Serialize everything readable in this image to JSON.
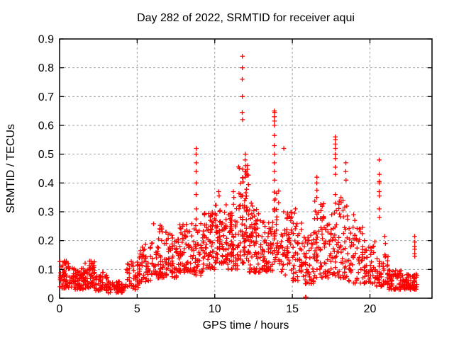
{
  "chart_data": {
    "type": "scatter",
    "title": "Day 282 of 2022, SRMTID for receiver aqui",
    "xlabel": "GPS time / hours",
    "ylabel": "SRMTID / TECUs",
    "xlim": [
      0,
      24
    ],
    "ylim": [
      0,
      0.9
    ],
    "x_ticks": [
      0,
      5,
      10,
      15,
      20
    ],
    "x_tick_labels": [
      "0",
      "5",
      "10",
      "15",
      "20"
    ],
    "y_ticks": [
      0,
      0.1,
      0.2,
      0.3,
      0.4,
      0.5,
      0.6,
      0.7,
      0.8,
      0.9
    ],
    "y_tick_labels": [
      "0",
      "0.1",
      "0.2",
      "0.3",
      "0.4",
      "0.5",
      "0.6",
      "0.7",
      "0.8",
      "0.9"
    ],
    "grid": true,
    "legend": "none",
    "marker": "plus",
    "marker_color": "#ff0000",
    "grid_color": "#a0a0a0",
    "border_color": "#000000",
    "seed": 7,
    "bands": [
      [
        0.0,
        0.6,
        0.035,
        0.13,
        55
      ],
      [
        0.6,
        1.6,
        0.03,
        0.105,
        85
      ],
      [
        1.6,
        2.3,
        0.035,
        0.13,
        60
      ],
      [
        2.3,
        3.1,
        0.025,
        0.09,
        55
      ],
      [
        3.1,
        4.3,
        0.018,
        0.06,
        55
      ],
      [
        4.3,
        5.1,
        0.03,
        0.13,
        45
      ],
      [
        5.1,
        5.9,
        0.05,
        0.19,
        55
      ],
      [
        5.9,
        6.8,
        0.07,
        0.26,
        65
      ],
      [
        6.8,
        7.6,
        0.07,
        0.23,
        60
      ],
      [
        7.6,
        8.6,
        0.09,
        0.26,
        75
      ],
      [
        8.6,
        9.3,
        0.08,
        0.28,
        55
      ],
      [
        9.3,
        10.0,
        0.1,
        0.3,
        60
      ],
      [
        10.0,
        10.8,
        0.12,
        0.34,
        75
      ],
      [
        10.8,
        11.5,
        0.1,
        0.33,
        70
      ],
      [
        11.5,
        12.2,
        0.12,
        0.48,
        80
      ],
      [
        12.2,
        13.0,
        0.09,
        0.31,
        70
      ],
      [
        13.0,
        13.8,
        0.09,
        0.27,
        60
      ],
      [
        13.8,
        14.2,
        0.12,
        0.38,
        35
      ],
      [
        14.2,
        15.0,
        0.08,
        0.3,
        55
      ],
      [
        15.0,
        15.8,
        0.06,
        0.27,
        50
      ],
      [
        15.8,
        16.4,
        0.05,
        0.24,
        45
      ],
      [
        16.4,
        17.1,
        0.07,
        0.34,
        55
      ],
      [
        17.1,
        17.8,
        0.07,
        0.3,
        50
      ],
      [
        17.8,
        18.6,
        0.07,
        0.35,
        55
      ],
      [
        18.6,
        19.6,
        0.05,
        0.25,
        60
      ],
      [
        19.6,
        20.4,
        0.05,
        0.2,
        50
      ],
      [
        20.4,
        21.2,
        0.04,
        0.16,
        50
      ],
      [
        21.2,
        22.3,
        0.03,
        0.1,
        75
      ],
      [
        22.3,
        23.05,
        0.03,
        0.085,
        60
      ]
    ],
    "outliers": [
      [
        8.81,
        0.52
      ],
      [
        8.8,
        0.5
      ],
      [
        8.81,
        0.47
      ],
      [
        8.8,
        0.44
      ],
      [
        8.81,
        0.4
      ],
      [
        8.8,
        0.36
      ],
      [
        8.81,
        0.31
      ],
      [
        8.8,
        0.275
      ],
      [
        10.25,
        0.37
      ],
      [
        10.28,
        0.355
      ],
      [
        11.2,
        0.37
      ],
      [
        11.23,
        0.35
      ],
      [
        11.78,
        0.84
      ],
      [
        11.78,
        0.8
      ],
      [
        11.77,
        0.76
      ],
      [
        11.78,
        0.7
      ],
      [
        11.77,
        0.645
      ],
      [
        11.79,
        0.62
      ],
      [
        11.97,
        0.5
      ],
      [
        11.96,
        0.48
      ],
      [
        11.98,
        0.46
      ],
      [
        11.97,
        0.44
      ],
      [
        11.96,
        0.42
      ],
      [
        12.35,
        0.33
      ],
      [
        12.42,
        0.32
      ],
      [
        13.84,
        0.65
      ],
      [
        13.86,
        0.645
      ],
      [
        13.84,
        0.63
      ],
      [
        13.85,
        0.615
      ],
      [
        13.84,
        0.6
      ],
      [
        13.85,
        0.565
      ],
      [
        13.84,
        0.53
      ],
      [
        13.85,
        0.5
      ],
      [
        13.84,
        0.47
      ],
      [
        13.85,
        0.44
      ],
      [
        13.86,
        0.41
      ],
      [
        14.45,
        0.52
      ],
      [
        14.44,
        0.3
      ],
      [
        15.2,
        0.31
      ],
      [
        15.14,
        0.295
      ],
      [
        15.85,
        0.004
      ],
      [
        15.88,
        0.004
      ],
      [
        16.58,
        0.42
      ],
      [
        16.57,
        0.4
      ],
      [
        16.58,
        0.375
      ],
      [
        16.57,
        0.35
      ],
      [
        17.77,
        0.56
      ],
      [
        17.78,
        0.55
      ],
      [
        17.77,
        0.535
      ],
      [
        17.78,
        0.52
      ],
      [
        17.77,
        0.5
      ],
      [
        17.78,
        0.485
      ],
      [
        17.77,
        0.455
      ],
      [
        17.78,
        0.43
      ],
      [
        17.77,
        0.36
      ],
      [
        17.78,
        0.33
      ],
      [
        18.45,
        0.47
      ],
      [
        18.44,
        0.44
      ],
      [
        18.46,
        0.41
      ],
      [
        18.95,
        0.29
      ],
      [
        19.02,
        0.27
      ],
      [
        20.6,
        0.48
      ],
      [
        20.61,
        0.43
      ],
      [
        20.6,
        0.405
      ],
      [
        20.61,
        0.4
      ],
      [
        20.6,
        0.37
      ],
      [
        20.61,
        0.355
      ],
      [
        20.6,
        0.31
      ],
      [
        20.61,
        0.28
      ],
      [
        20.95,
        0.215
      ],
      [
        21.0,
        0.19
      ],
      [
        22.88,
        0.215
      ],
      [
        22.89,
        0.195
      ],
      [
        22.88,
        0.18
      ],
      [
        22.89,
        0.17
      ],
      [
        22.88,
        0.155
      ],
      [
        22.89,
        0.145
      ]
    ]
  }
}
